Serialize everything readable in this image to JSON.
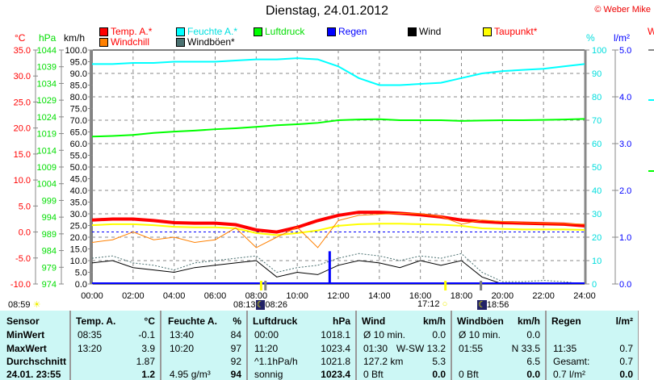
{
  "header": {
    "title": "Dienstag, 24.01.2012",
    "copyright": "© Weber Mike"
  },
  "legend": [
    {
      "label": "Temp. A.*",
      "color": "#ff0000",
      "text_color": "#ff0000"
    },
    {
      "label": "Feuchte A.*",
      "color": "#00ffff",
      "text_color": "#00e0e0"
    },
    {
      "label": "Luftdruck",
      "color": "#00ff00",
      "text_color": "#00dd00"
    },
    {
      "label": "Regen",
      "color": "#0000ff",
      "text_color": "#0000ff"
    },
    {
      "label": "Wind",
      "color": "#000000",
      "text_color": "#000000"
    },
    {
      "label": "Taupunkt*",
      "color": "#ffff00",
      "text_color": "#ff0000"
    },
    {
      "label": "Windchill",
      "color": "#ff8000",
      "text_color": "#ff0000"
    },
    {
      "label": "Windböen*",
      "color": "#4a7070",
      "text_color": "#000000"
    }
  ],
  "units": {
    "temp": "°C",
    "pressure": "hPa",
    "wind": "km/h",
    "humidity": "%",
    "rain": "l/m²",
    "cut": "W"
  },
  "chart_data": {
    "type": "line",
    "title": "Dienstag, 24.01.2012",
    "x": [
      0,
      1,
      2,
      3,
      4,
      5,
      6,
      7,
      8,
      9,
      10,
      11,
      12,
      13,
      14,
      15,
      16,
      17,
      18,
      19,
      20,
      21,
      22,
      23,
      24
    ],
    "x_ticks": [
      "00:00",
      "02:00",
      "04:00",
      "06:00",
      "08:00",
      "10:00",
      "12:00",
      "14:00",
      "16:00",
      "18:00",
      "20:00",
      "22:00",
      "24:00"
    ],
    "xlim": [
      0,
      24
    ],
    "axes": {
      "temp": {
        "range": [
          -10,
          35
        ],
        "ticks": [
          "-10.0",
          "-5.0",
          "0.0",
          "5.0",
          "10.0",
          "15.0",
          "20.0",
          "25.0",
          "30.0",
          "35.0"
        ]
      },
      "pressure": {
        "range": [
          974,
          1044
        ],
        "ticks": [
          "974",
          "979",
          "984",
          "989",
          "994",
          "999",
          "1004",
          "1009",
          "1014",
          "1019",
          "1024",
          "1029",
          "1034",
          "1039",
          "1044"
        ]
      },
      "wind": {
        "range": [
          0,
          100
        ],
        "ticks": [
          "0.0",
          "5.0",
          "10.0",
          "15.0",
          "20.0",
          "25.0",
          "30.0",
          "35.0",
          "40.0",
          "45.0",
          "50.0",
          "55.0",
          "60.0",
          "65.0",
          "70.0",
          "75.0",
          "80.0",
          "85.0",
          "90.0",
          "95.0",
          "100.0"
        ]
      },
      "humidity": {
        "range": [
          0,
          100
        ],
        "ticks": [
          "0",
          "10",
          "20",
          "30",
          "40",
          "50",
          "60",
          "70",
          "80",
          "90",
          "100"
        ]
      },
      "rain": {
        "range": [
          0,
          5
        ],
        "ticks": [
          "0.0",
          "1.0",
          "2.0",
          "3.0",
          "4.0",
          "5.0"
        ]
      }
    },
    "grid": true,
    "series": [
      {
        "name": "Temp. A.*",
        "axis": "temp",
        "color": "#ff0000",
        "values": [
          2.3,
          2.5,
          2.5,
          2.2,
          1.8,
          1.7,
          1.7,
          1.4,
          0.4,
          0.0,
          0.9,
          2.2,
          3.2,
          3.8,
          3.8,
          3.6,
          3.3,
          2.9,
          2.3,
          2.0,
          1.8,
          1.7,
          1.6,
          1.5,
          1.2
        ]
      },
      {
        "name": "Feuchte A.*",
        "axis": "humidity",
        "color": "#00ffff",
        "values": [
          94,
          94,
          94.5,
          94.5,
          95,
          95,
          95,
          95.5,
          96,
          96,
          96.5,
          96,
          93,
          88,
          85,
          85,
          85.5,
          86,
          88,
          90,
          91,
          91.5,
          92,
          93,
          94
        ]
      },
      {
        "name": "Luftdruck",
        "axis": "pressure",
        "color": "#00ff00",
        "values": [
          1018.1,
          1018.3,
          1018.6,
          1019.2,
          1019.6,
          1019.9,
          1020.3,
          1020.6,
          1021.0,
          1021.5,
          1021.8,
          1022.2,
          1023.0,
          1023.2,
          1023.3,
          1023.0,
          1023.0,
          1023.0,
          1022.8,
          1022.9,
          1023.0,
          1023.0,
          1023.1,
          1023.2,
          1023.4
        ]
      },
      {
        "name": "Taupunkt*",
        "axis": "temp",
        "color": "#ffff00",
        "values": [
          1.3,
          1.5,
          1.5,
          1.3,
          1.0,
          0.9,
          0.9,
          0.7,
          -0.2,
          -0.6,
          -0.2,
          0.3,
          1.2,
          1.5,
          1.6,
          1.6,
          1.5,
          1.4,
          1.2,
          0.7,
          0.6,
          0.5,
          0.5,
          0.5,
          0.4
        ]
      },
      {
        "name": "Windchill",
        "axis": "temp",
        "color": "#ff8000",
        "values": [
          -2,
          -1.5,
          0,
          -1.5,
          -1,
          -2,
          -1.5,
          0.8,
          -3,
          -1,
          0.9,
          -3,
          2.2,
          3.2,
          3.4,
          3.6,
          3.5,
          3.0,
          1.5,
          2.3,
          2.0,
          1.8,
          1.7,
          1.6,
          1.5
        ]
      },
      {
        "name": "Windböen*",
        "axis": "wind",
        "color": "#4a7070",
        "values": [
          11,
          12,
          9,
          8,
          6,
          9,
          10,
          11,
          12,
          5,
          7,
          8,
          11,
          13,
          12,
          10,
          12,
          11,
          13,
          5,
          1,
          1,
          1.5,
          1,
          0
        ]
      },
      {
        "name": "Wind",
        "axis": "wind",
        "color": "#000000",
        "values": [
          9,
          10,
          7,
          6,
          5,
          7,
          8,
          9,
          10,
          3,
          5,
          4,
          8,
          10,
          9,
          7,
          10,
          8,
          10,
          3,
          0,
          0,
          0.5,
          0,
          0
        ]
      }
    ],
    "rain_bars": [
      {
        "time": 11.58,
        "value": 0.7
      }
    ],
    "markers": [
      {
        "time": 8.22,
        "color": "#ffff00"
      },
      {
        "time": 8.43,
        "color": "#808080"
      },
      {
        "time": 17.2,
        "color": "#ffff00"
      },
      {
        "time": 18.93,
        "color": "#808080"
      }
    ]
  },
  "astro": {
    "sun_left": "08:59",
    "sunrise": "08:13",
    "moon_a": "08:26",
    "sunset": "17:12",
    "moon_b": "18:56"
  },
  "table": {
    "sensor": {
      "h": "Sensor",
      "r1": "MinWert",
      "r2": "MaxWert",
      "r3": "Durchschnitt",
      "r4": "24.01. 23:55"
    },
    "temp": {
      "h": "Temp. A.",
      "u": "°C",
      "t1": "08:35",
      "v1": "-0.1",
      "t2": "13:20",
      "v2": "3.9",
      "v3": "1.87",
      "v4": "1.2"
    },
    "hum": {
      "h": "Feuchte A.",
      "u": "%",
      "t1": "13:40",
      "v1": "84",
      "t2": "10:20",
      "v2": "97",
      "v3": "92",
      "t4": "4.95 g/m³",
      "v4": "94"
    },
    "press": {
      "h": "Luftdruck",
      "u": "hPa",
      "t1": "00:00",
      "v1": "1018.1",
      "t2": "11:20",
      "v2": "1023.4",
      "t3": "^1.1hPa/h",
      "v3": "1021.8",
      "t4": "sonnig",
      "v4": "1023.4"
    },
    "wind": {
      "h": "Wind",
      "u": "km/h",
      "t1": "Ø 10 min.",
      "v1": "0.0",
      "t2": "01:30",
      "v2": "W-SW 13.2",
      "t3": "127.2 km",
      "v3": "5.3",
      "t4": "0 Bft",
      "v4": "0.0"
    },
    "gust": {
      "h": "Windböen",
      "u": "km/h",
      "t1": "Ø 10 min.",
      "v1": "0.0",
      "t2": "01:55",
      "v2": "N 33.5",
      "v3": "6.5",
      "t4": "0 Bft",
      "v4": "0.0"
    },
    "rain": {
      "h": "Regen",
      "u": "l/m²",
      "t2": "11:35",
      "v2": "0.7",
      "t3": "Gesamt:",
      "v3": "0.7",
      "t4": "0.7 l/m²",
      "v4": "0.0"
    }
  }
}
